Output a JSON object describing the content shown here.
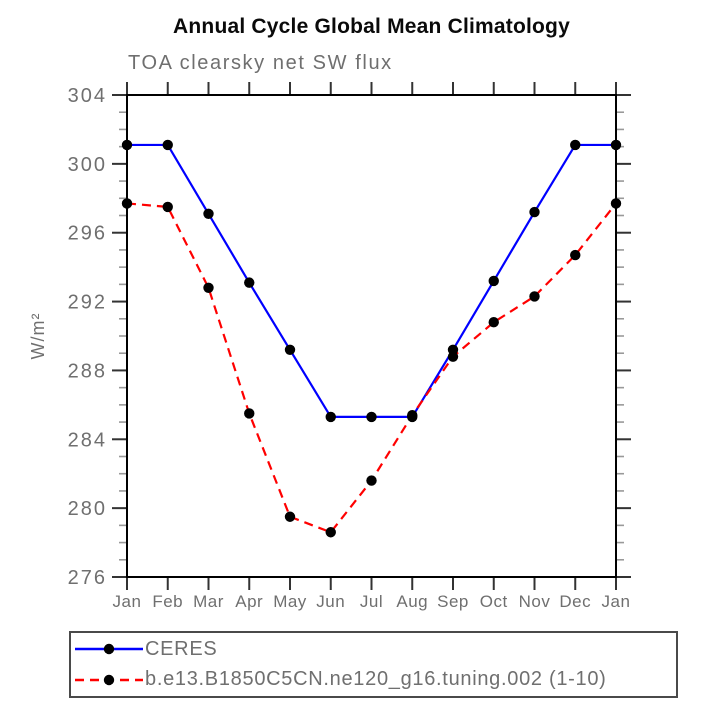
{
  "chart_data": {
    "type": "line",
    "title": "Annual Cycle Global Mean Climatology",
    "subtitle": "TOA clearsky net SW flux",
    "ylabel": "W/m²",
    "categories": [
      "Jan",
      "Feb",
      "Mar",
      "Apr",
      "May",
      "Jun",
      "Jul",
      "Aug",
      "Sep",
      "Oct",
      "Nov",
      "Dec",
      "Jan"
    ],
    "ylim": [
      276,
      304
    ],
    "ytick_major": 4,
    "ytick_minor": 1,
    "grid": false,
    "legend_position": "bottom",
    "marker_color": "#000000",
    "text_color": "#6f6f6f",
    "series": [
      {
        "name": "CERES",
        "color": "#0000ff",
        "style": "solid",
        "values": [
          301.1,
          301.1,
          297.1,
          293.1,
          289.2,
          285.3,
          285.3,
          285.3,
          289.2,
          293.2,
          297.2,
          301.1,
          301.1
        ]
      },
      {
        "name": "b.e13.B1850C5CN.ne120_g16.tuning.002 (1-10)",
        "color": "#ff0000",
        "style": "dashed",
        "values": [
          297.7,
          297.5,
          292.8,
          285.5,
          279.5,
          278.6,
          281.6,
          285.4,
          288.8,
          290.8,
          292.3,
          294.7,
          297.7
        ]
      }
    ]
  }
}
